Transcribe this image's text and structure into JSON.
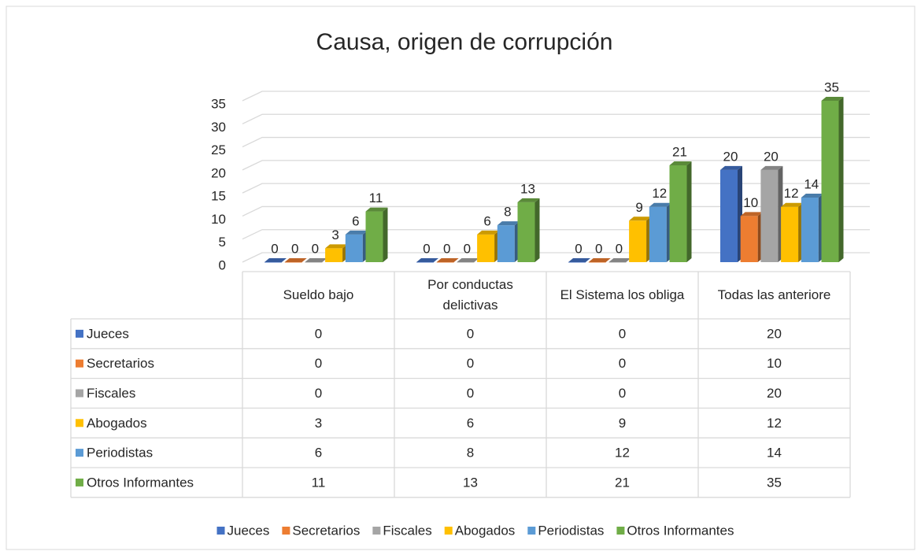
{
  "chart_data": {
    "type": "bar3d",
    "title": "Causa, origen de corrupción",
    "categories": [
      "Sueldo bajo",
      "Por conductas delictivas",
      "El Sistema los obliga",
      "Todas las anteriore"
    ],
    "series": [
      {
        "name": "Jueces",
        "color": "#4472c4",
        "values": [
          0,
          0,
          0,
          20
        ]
      },
      {
        "name": "Secretarios",
        "color": "#ed7d31",
        "values": [
          0,
          0,
          0,
          10
        ]
      },
      {
        "name": "Fiscales",
        "color": "#a5a5a5",
        "values": [
          0,
          0,
          0,
          20
        ]
      },
      {
        "name": "Abogados",
        "color": "#ffc000",
        "values": [
          3,
          6,
          9,
          12
        ]
      },
      {
        "name": "Periodistas",
        "color": "#5b9bd5",
        "values": [
          6,
          8,
          12,
          14
        ]
      },
      {
        "name": "Otros Informantes",
        "color": "#70ad47",
        "values": [
          11,
          13,
          21,
          35
        ]
      }
    ],
    "ylim": [
      0,
      35
    ],
    "yticks": [
      0,
      5,
      10,
      15,
      20,
      25,
      30,
      35
    ],
    "grid": true,
    "legend": "bottom",
    "data_table": true
  }
}
